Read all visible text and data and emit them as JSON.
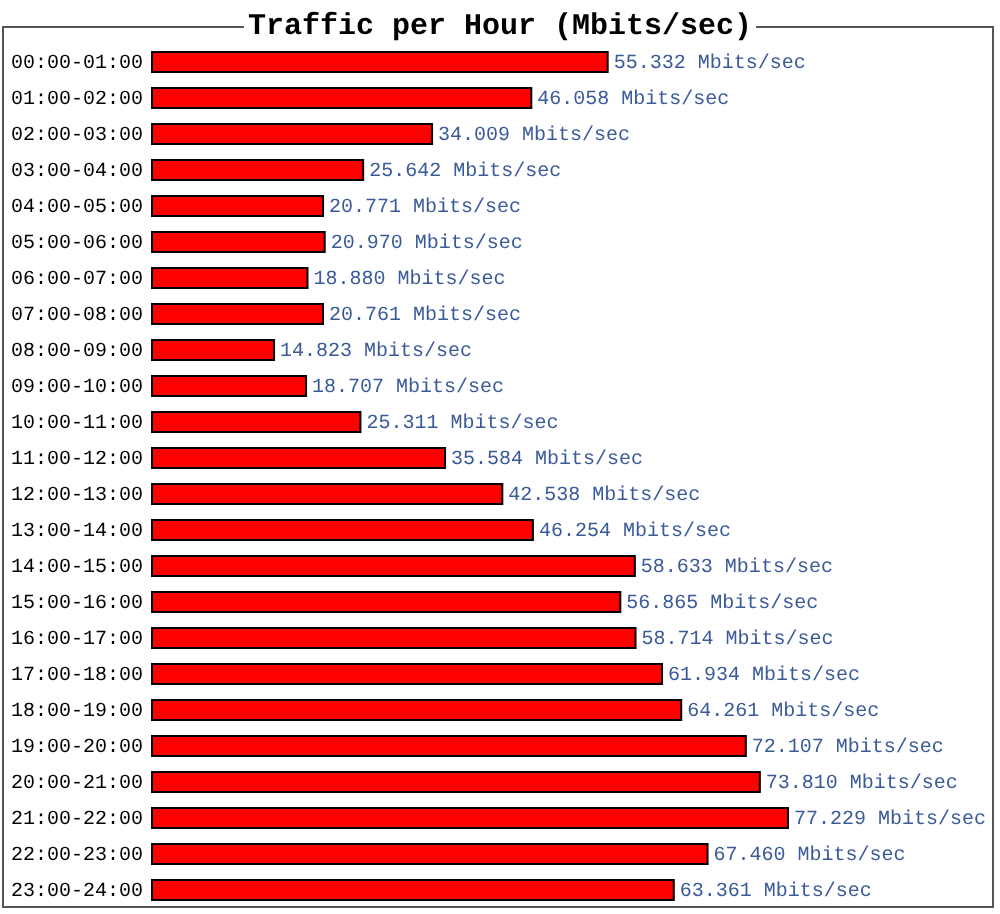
{
  "chart_data": {
    "type": "bar",
    "orientation": "horizontal",
    "title": "Traffic per Hour (Mbits/sec)",
    "categories": [
      "00:00-01:00",
      "01:00-02:00",
      "02:00-03:00",
      "03:00-04:00",
      "04:00-05:00",
      "05:00-06:00",
      "06:00-07:00",
      "07:00-08:00",
      "08:00-09:00",
      "09:00-10:00",
      "10:00-11:00",
      "11:00-12:00",
      "12:00-13:00",
      "13:00-14:00",
      "14:00-15:00",
      "15:00-16:00",
      "16:00-17:00",
      "17:00-18:00",
      "18:00-19:00",
      "19:00-20:00",
      "20:00-21:00",
      "21:00-22:00",
      "22:00-23:00",
      "23:00-24:00"
    ],
    "values": [
      55.332,
      46.058,
      34.009,
      25.642,
      20.771,
      20.97,
      18.88,
      20.761,
      14.823,
      18.707,
      25.311,
      35.584,
      42.538,
      46.254,
      58.633,
      56.865,
      58.714,
      61.934,
      64.261,
      72.107,
      73.81,
      77.229,
      67.46,
      63.361
    ],
    "value_labels": [
      "55.332 Mbits/sec",
      "46.058 Mbits/sec",
      "34.009 Mbits/sec",
      "25.642 Mbits/sec",
      "20.771 Mbits/sec",
      "20.970 Mbits/sec",
      "18.880 Mbits/sec",
      "20.761 Mbits/sec",
      "14.823 Mbits/sec",
      "18.707 Mbits/sec",
      "25.311 Mbits/sec",
      "35.584 Mbits/sec",
      "42.538 Mbits/sec",
      "46.254 Mbits/sec",
      "58.633 Mbits/sec",
      "56.865 Mbits/sec",
      "58.714 Mbits/sec",
      "61.934 Mbits/sec",
      "64.261 Mbits/sec",
      "72.107 Mbits/sec",
      "73.810 Mbits/sec",
      "77.229 Mbits/sec",
      "67.460 Mbits/sec",
      "63.361 Mbits/sec"
    ],
    "color": "#ff0000",
    "tick_labels": "y"
  }
}
